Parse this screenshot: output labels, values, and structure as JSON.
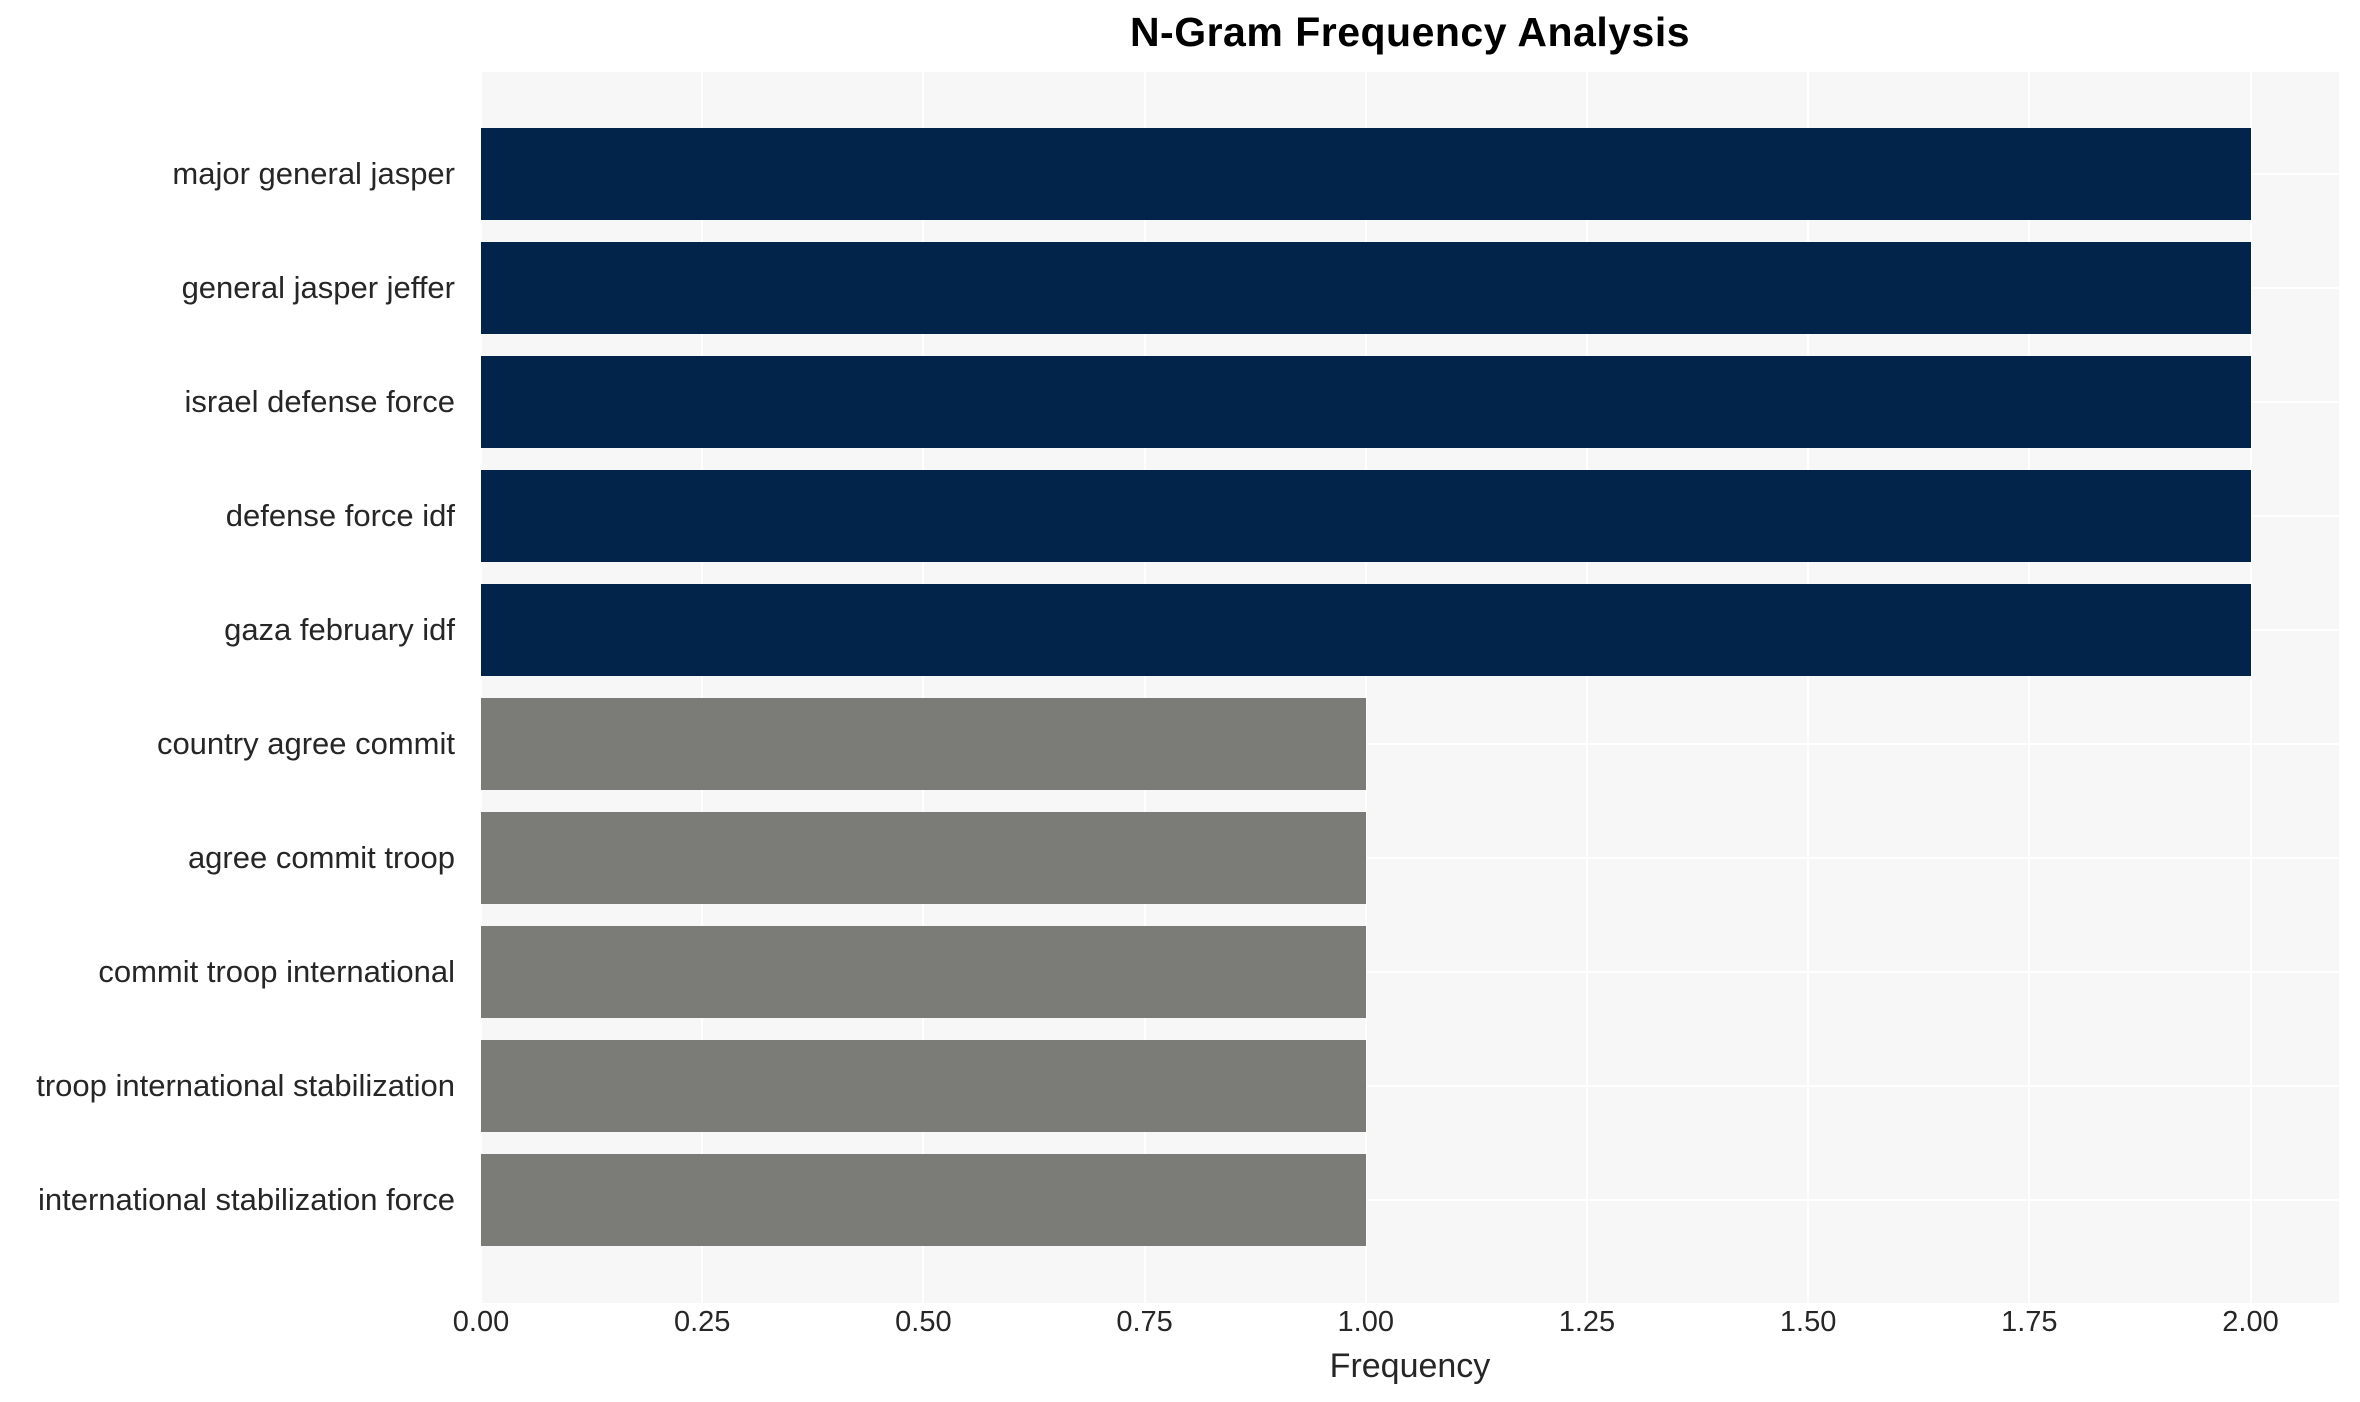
{
  "chart_data": {
    "type": "bar",
    "orientation": "horizontal",
    "title": "N-Gram Frequency Analysis",
    "xlabel": "Frequency",
    "ylabel": "",
    "categories": [
      "major general jasper",
      "general jasper jeffer",
      "israel defense force",
      "defense force idf",
      "gaza february idf",
      "country agree commit",
      "agree commit troop",
      "commit troop international",
      "troop international stabilization",
      "international stabilization force"
    ],
    "values": [
      2.0,
      2.0,
      2.0,
      2.0,
      2.0,
      1.0,
      1.0,
      1.0,
      1.0,
      1.0
    ],
    "bar_colors": [
      "#02234A",
      "#02234A",
      "#02234A",
      "#02234A",
      "#02234A",
      "#7B7B78",
      "#7B7B78",
      "#7B7B78",
      "#7B7B78",
      "#7B7B78"
    ],
    "xlim": [
      0,
      2.1
    ],
    "xtick_values": [
      0,
      0.25,
      0.5,
      0.75,
      1.0,
      1.25,
      1.5,
      1.75,
      2.0
    ],
    "xtick_labels": [
      "0.00",
      "0.25",
      "0.50",
      "0.75",
      "1.00",
      "1.25",
      "1.50",
      "1.75",
      "2.00"
    ],
    "grid": true,
    "legend_position": "none",
    "plot_background": "#F7F7F7",
    "grid_color": "#FFFFFF",
    "text_color": "#262626"
  }
}
